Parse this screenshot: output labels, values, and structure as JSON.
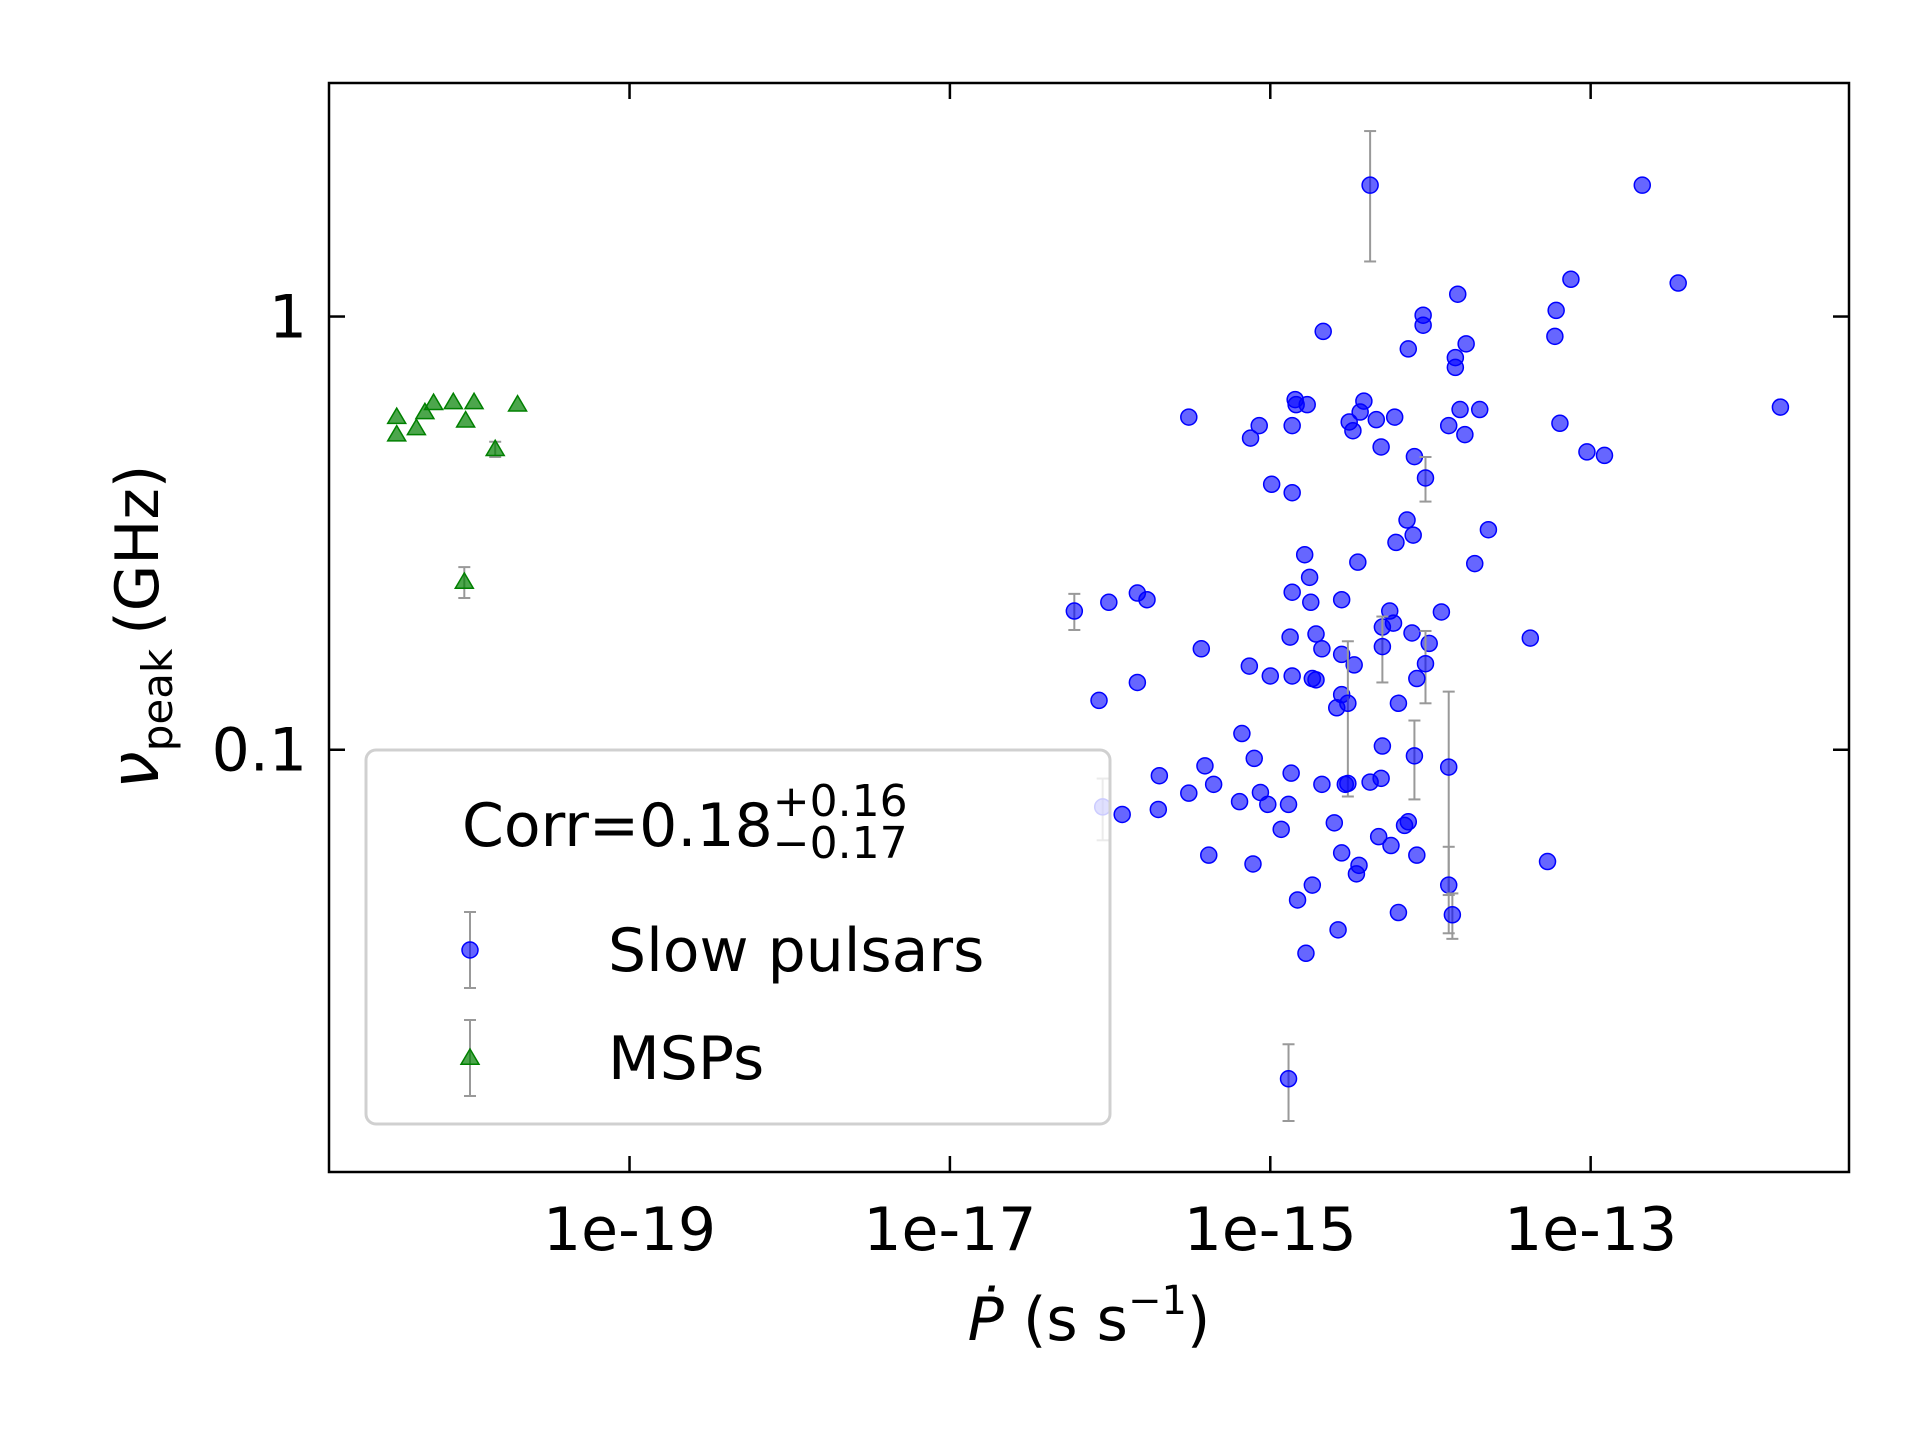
{
  "chart_data": {
    "type": "scatter",
    "xscale": "log",
    "yscale": "log",
    "xlim": [
      1.33e-21,
      4.1e-12
    ],
    "ylim": [
      0.0106,
      3.46
    ],
    "xticks": [
      {
        "value": 1e-19,
        "label": "1e-19"
      },
      {
        "value": 1e-17,
        "label": "1e-17"
      },
      {
        "value": 1e-15,
        "label": "1e-15"
      },
      {
        "value": 1e-13,
        "label": "1e-13"
      }
    ],
    "yticks": [
      0.1,
      1
    ],
    "xlabel": {
      "symbol": "Ṗ",
      "unit": "(s s",
      "superscript": "−1",
      "close": ")"
    },
    "ylabel": {
      "symbol": "ν",
      "subscript": "peak",
      "unit": "(GHz)"
    },
    "annotation": {
      "text": "Corr=0.18",
      "sup": "+0.16",
      "sub": "−0.17"
    },
    "legend": "lower left",
    "series": [
      {
        "name": "Slow pulsars",
        "color": "#0000ff",
        "marker": "circle",
        "x": [
          4.2e-15,
          2.1e-13,
          3.52e-13,
          7.53e-14,
          6.09e-14,
          1.48e-14,
          9e-15,
          9e-15,
          2.14e-15,
          1.67e-14,
          7.27e-15,
          1.43e-14,
          1.43e-14,
          5.98e-14,
          1.53e-12,
          3.1e-16,
          1.43e-15,
          1.45e-15,
          1.7e-15,
          3.84e-15,
          3.64e-15,
          4.59e-15,
          5.98e-15,
          3.11e-15,
          3.28e-15,
          8.53e-16,
          7.53e-16,
          1.37e-15,
          1.53e-14,
          2.03e-14,
          1.3e-14,
          1.64e-14,
          6.43e-14,
          4.92e-15,
          7.94e-15,
          9.48e-14,
          1.22e-13,
          9.31e-15,
          1.02e-15,
          1.37e-15,
          7.14e-15,
          2.3e-14,
          7.8e-15,
          6.09e-15,
          1.64e-15,
          3.52e-15,
          1.89e-14,
          1.76e-15,
          1.37e-15,
          2.79e-15,
          1.79e-15,
          5.98e-17,
          9.82e-17,
          1.48e-16,
          1.7e-16,
          5.57e-15,
          1.17e-14,
          5.88e-15,
          5.01e-15,
          1.93e-15,
          7.67e-15,
          1.33e-15,
          4.2e-14,
          2.1e-15,
          9.82e-15,
          5.01e-15,
          3.71e-16,
          2.79e-15,
          7.4e-16,
          3.34e-15,
          9.31e-15,
          1.37e-15,
          1.83e-15,
          1.93e-15,
          1e-15,
          1.48e-16,
          8.22e-15,
          2.79e-15,
          3.05e-15,
          2.6e-15,
          8.53e-17,
          6.31e-15,
          6.65e-16,
          5.01e-15,
          7.94e-16,
          7.94e-15,
          3.91e-16,
          1.3e-14,
          2.03e-16,
          1.35e-15,
          4.43e-16,
          2.1e-15,
          2.94e-15,
          3.05e-15,
          4.2e-15,
          4.92e-15,
          3.1e-16,
          8.68e-16,
          6.43e-16,
          9.65e-16,
          1.3e-15,
          7.27e-15,
          6.89e-15,
          8.99e-17,
          1.19e-16,
          2e-16,
          1.17e-15,
          2.51e-15,
          4.75e-15,
          5.67e-15,
          4.13e-16,
          2.79e-15,
          8.22e-15,
          7.8e-16,
          3.58e-15,
          3.45e-15,
          5.38e-14,
          1.83e-15,
          1.48e-15,
          1.3e-14,
          6.31e-15,
          1.37e-14,
          2.65e-15,
          1.67e-15,
          1.3e-15
        ],
        "values": [
          2.01,
          2.01,
          1.195,
          1.219,
          1.033,
          1.126,
          1.007,
          0.955,
          0.924,
          0.865,
          0.842,
          0.804,
          0.763,
          0.9,
          0.618,
          0.586,
          0.643,
          0.626,
          0.626,
          0.638,
          0.602,
          0.578,
          0.586,
          0.571,
          0.545,
          0.56,
          0.524,
          0.56,
          0.61,
          0.61,
          0.56,
          0.534,
          0.567,
          0.5,
          0.475,
          0.487,
          0.478,
          0.424,
          0.41,
          0.392,
          0.339,
          0.322,
          0.313,
          0.301,
          0.282,
          0.271,
          0.269,
          0.25,
          0.231,
          0.222,
          0.219,
          0.209,
          0.219,
          0.23,
          0.222,
          0.209,
          0.208,
          0.196,
          0.192,
          0.185,
          0.186,
          0.182,
          0.181,
          0.171,
          0.176,
          0.173,
          0.171,
          0.166,
          0.156,
          0.157,
          0.158,
          0.148,
          0.146,
          0.145,
          0.148,
          0.143,
          0.146,
          0.134,
          0.128,
          0.125,
          0.13,
          0.128,
          0.109,
          0.102,
          0.0955,
          0.0968,
          0.0918,
          0.0912,
          0.0871,
          0.0883,
          0.0832,
          0.0832,
          0.0832,
          0.0836,
          0.0842,
          0.0859,
          0.0794,
          0.0797,
          0.0759,
          0.0748,
          0.0748,
          0.0682,
          0.0669,
          0.0738,
          0.0709,
          0.0728,
          0.0655,
          0.0678,
          0.063,
          0.0601,
          0.0571,
          0.0578,
          0.0571,
          0.0545,
          0.0541,
          0.0517,
          0.0552,
          0.0487,
          0.045,
          0.0487,
          0.0421,
          0.0416,
          0.0384,
          0.0339,
          0.0174
        ],
        "errors": [
          0.67,
          null,
          null,
          null,
          null,
          null,
          null,
          null,
          null,
          null,
          null,
          null,
          null,
          null,
          null,
          null,
          null,
          null,
          null,
          null,
          null,
          null,
          null,
          null,
          null,
          null,
          null,
          null,
          null,
          null,
          null,
          null,
          null,
          null,
          null,
          null,
          null,
          0.05,
          null,
          null,
          null,
          null,
          null,
          null,
          null,
          null,
          null,
          null,
          null,
          null,
          null,
          0.02,
          null,
          null,
          null,
          null,
          null,
          null,
          null,
          null,
          null,
          null,
          null,
          null,
          null,
          0.03,
          null,
          null,
          null,
          null,
          0.03,
          null,
          null,
          null,
          null,
          null,
          null,
          null,
          0.05,
          null,
          null,
          null,
          null,
          null,
          null,
          0.02,
          null,
          0.045,
          null,
          null,
          null,
          null,
          null,
          null,
          null,
          null,
          null,
          null,
          null,
          null,
          null,
          null,
          null,
          0.012,
          null,
          null,
          null,
          null,
          null,
          null,
          null,
          null,
          null,
          null,
          null,
          null,
          null,
          null,
          null,
          0.011,
          null,
          0.005,
          null,
          null,
          0.0035
        ]
      },
      {
        "name": "MSPs",
        "color": "#008000",
        "marker": "triangle",
        "x": [
          3.52e-21,
          3.52e-21,
          4.67e-21,
          5.28e-21,
          5.98e-21,
          7.94e-21,
          9.48e-21,
          1.07e-20,
          1.45e-20,
          2e-20,
          9.3e-21
        ],
        "values": [
          0.586,
          0.534,
          0.552,
          0.601,
          0.631,
          0.634,
          0.575,
          0.634,
          0.494,
          0.626,
          0.244
        ],
        "errors": [
          null,
          null,
          null,
          null,
          null,
          null,
          null,
          null,
          0.02,
          null,
          0.02
        ]
      }
    ]
  }
}
